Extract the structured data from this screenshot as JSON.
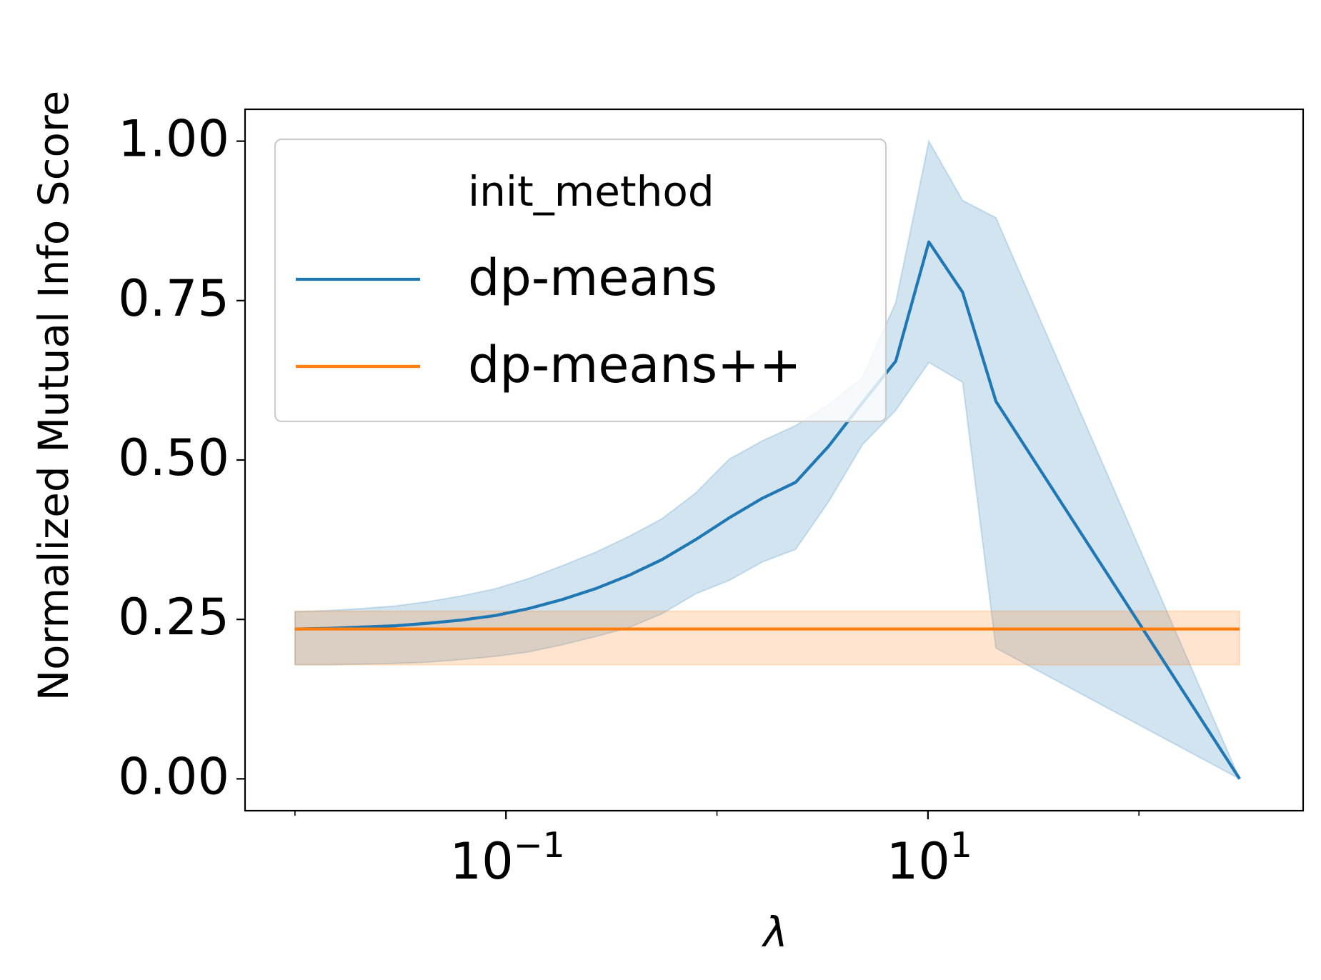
{
  "chart_data": {
    "type": "line",
    "xlabel": "λ",
    "ylabel": "Normalized Mutual Info Score",
    "xscale": "log",
    "xlim": [
      0.0058,
      600
    ],
    "ylim": [
      -0.05,
      1.05
    ],
    "x_ticks": [
      {
        "value": 0.1,
        "base": "10",
        "exp": "−1"
      },
      {
        "value": 10,
        "base": "10",
        "exp": "1"
      }
    ],
    "y_ticks": [
      {
        "value": 0,
        "label": "0.00"
      },
      {
        "value": 0.25,
        "label": "0.25"
      },
      {
        "value": 0.5,
        "label": "0.50"
      },
      {
        "value": 0.75,
        "label": "0.75"
      },
      {
        "value": 1,
        "label": "1.00"
      }
    ],
    "grid": false,
    "legend": {
      "title": "init_method",
      "placement": "upper-left"
    },
    "series": [
      {
        "name": "dp-means",
        "color": "#1f77b4",
        "band_color": "#1f77b4",
        "x": [
          0.01,
          0.0144,
          0.0207,
          0.0298,
          0.0429,
          0.0617,
          0.0889,
          0.128,
          0.184,
          0.265,
          0.382,
          0.55,
          0.791,
          1.14,
          1.64,
          2.36,
          3.39,
          4.89,
          7.04,
          10.1,
          14.6,
          21.0,
          300
        ],
        "values": [
          0.235,
          0.236,
          0.238,
          0.24,
          0.244,
          0.249,
          0.256,
          0.267,
          0.281,
          0.298,
          0.319,
          0.344,
          0.375,
          0.409,
          0.44,
          0.465,
          0.522,
          0.59,
          0.655,
          0.842,
          0.763,
          0.592,
          0.0
        ],
        "lower": [
          0.179,
          0.179,
          0.18,
          0.181,
          0.183,
          0.187,
          0.192,
          0.199,
          0.21,
          0.223,
          0.237,
          0.259,
          0.29,
          0.311,
          0.34,
          0.36,
          0.435,
          0.524,
          0.578,
          0.653,
          0.622,
          0.205,
          0.0
        ],
        "upper": [
          0.262,
          0.264,
          0.267,
          0.271,
          0.278,
          0.287,
          0.298,
          0.314,
          0.334,
          0.355,
          0.38,
          0.408,
          0.448,
          0.501,
          0.53,
          0.554,
          0.587,
          0.629,
          0.747,
          1.0,
          0.907,
          0.88,
          0.0
        ],
        "extra_segment": {
          "x": [
            14.6,
            21.0
          ],
          "values": [
            0.592,
            0.0
          ],
          "lower": [
            0.205,
            0.0
          ],
          "upper": [
            0.616,
            0.0
          ]
        }
      },
      {
        "name": "dp-means++",
        "color": "#ff7f0e",
        "band_color": "#ff7f0e",
        "x": [
          0.01,
          300
        ],
        "values": [
          0.235,
          0.235
        ],
        "lower": [
          0.179,
          0.179
        ],
        "upper": [
          0.263,
          0.263
        ]
      }
    ]
  }
}
